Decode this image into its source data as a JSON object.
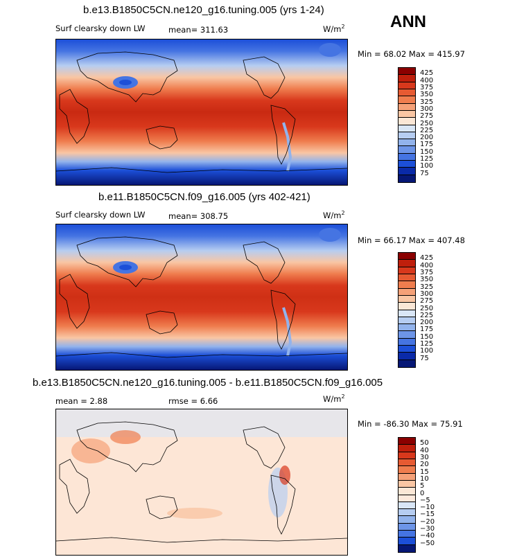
{
  "season_label": "ANN",
  "chart_data": [
    {
      "type": "heatmap",
      "title": "b.e13.B1850C5CN.ne120_g16.tuning.005 (yrs 1-24)",
      "variable": "Surf clearsky down LW",
      "mean_text": "mean= 311.63",
      "units": "W/m",
      "units_exp": "2",
      "min_max_text": "Min =  68.02 Max = 415.97",
      "min": 68.02,
      "max": 415.97,
      "mean": 311.63,
      "colorbar_levels": [
        "425",
        "400",
        "375",
        "350",
        "325",
        "300",
        "275",
        "250",
        "225",
        "200",
        "175",
        "150",
        "125",
        "100",
        "75"
      ],
      "colorbar_colors": [
        "#8b0000",
        "#bf1f0c",
        "#d8381c",
        "#e65a32",
        "#ef7d4e",
        "#f5a178",
        "#f9c6a4",
        "#fbe7d6",
        "#d9e6f6",
        "#b6cdf1",
        "#92b3ec",
        "#6d95e8",
        "#4574e2",
        "#1c4fd8",
        "#0a2aa8",
        "#061775"
      ],
      "field": "sw_downward_lw_clearsky"
    },
    {
      "type": "heatmap",
      "title": "b.e11.B1850C5CN.f09_g16.005 (yrs 402-421)",
      "variable": "Surf clearsky down LW",
      "mean_text": "mean= 308.75",
      "units": "W/m",
      "units_exp": "2",
      "min_max_text": "Min =  66.17 Max = 407.48",
      "min": 66.17,
      "max": 407.48,
      "mean": 308.75,
      "colorbar_levels": [
        "425",
        "400",
        "375",
        "350",
        "325",
        "300",
        "275",
        "250",
        "225",
        "200",
        "175",
        "150",
        "125",
        "100",
        "75"
      ],
      "colorbar_colors": [
        "#8b0000",
        "#bf1f0c",
        "#d8381c",
        "#e65a32",
        "#ef7d4e",
        "#f5a178",
        "#f9c6a4",
        "#fbe7d6",
        "#d9e6f6",
        "#b6cdf1",
        "#92b3ec",
        "#6d95e8",
        "#4574e2",
        "#1c4fd8",
        "#0a2aa8",
        "#061775"
      ]
    },
    {
      "type": "heatmap",
      "title": "b.e13.B1850C5CN.ne120_g16.tuning.005 - b.e11.B1850C5CN.f09_g16.005",
      "mean_text": "mean =    2.88",
      "rmse_text": "rmse =    6.66",
      "units": "W/m",
      "units_exp": "2",
      "min_max_text": "Min = -86.30 Max =  75.91",
      "min": -86.3,
      "max": 75.91,
      "mean": 2.88,
      "rmse": 6.66,
      "colorbar_levels": [
        "50",
        "40",
        "30",
        "20",
        "15",
        "10",
        "5",
        "0",
        "−5",
        "−10",
        "−15",
        "−20",
        "−30",
        "−40",
        "−50"
      ],
      "colorbar_colors": [
        "#8b0000",
        "#bf1f0c",
        "#d8381c",
        "#e65a32",
        "#ef7d4e",
        "#f5a178",
        "#f9c6a4",
        "#fbe7d6",
        "#fde9dc",
        "#d9e6f6",
        "#b6cdf1",
        "#92b3ec",
        "#6d95e8",
        "#4574e2",
        "#1c4fd8",
        "#061775"
      ]
    }
  ]
}
